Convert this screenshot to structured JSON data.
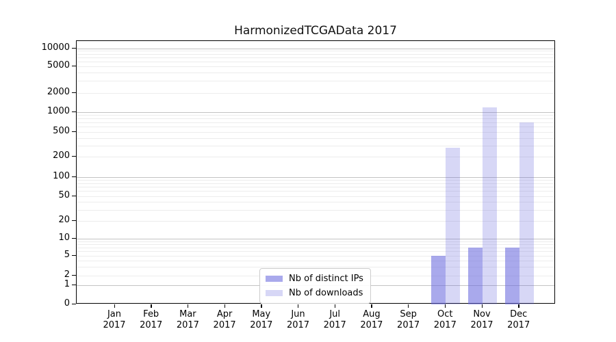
{
  "chart_data": {
    "type": "bar",
    "title": "HarmonizedTCGAData 2017",
    "categories": [
      "Jan",
      "Feb",
      "Mar",
      "Apr",
      "May",
      "Jun",
      "Jul",
      "Aug",
      "Sep",
      "Oct",
      "Nov",
      "Dec"
    ],
    "x_tick_year": "2017",
    "series": [
      {
        "name": "Nb of distinct IPs",
        "color": "rgba(102,102,221,0.56)",
        "color_hex_on_white": "#a9a9ee",
        "values": [
          0,
          0,
          0,
          0,
          0,
          0,
          0,
          0,
          0,
          5,
          7,
          7
        ]
      },
      {
        "name": "Nb of downloads",
        "color": "rgba(102,102,221,0.26)",
        "color_hex_on_white": "#d7d7f6",
        "values": [
          0,
          0,
          0,
          0,
          0,
          0,
          0,
          0,
          0,
          280,
          1200,
          700
        ]
      }
    ],
    "y_ticks": [
      0,
      1,
      2,
      5,
      10,
      20,
      50,
      100,
      200,
      500,
      1000,
      2000,
      5000,
      10000
    ],
    "y_scale": "log-like (linear below 1)",
    "ylim": [
      0,
      14000
    ],
    "grid": true,
    "grid_major_color": "#c3c3c3",
    "grid_minor_color": "#ececec",
    "legend_position": "bottom-center",
    "legend_labels": [
      "Nb of distinct IPs",
      "Nb of downloads"
    ]
  }
}
